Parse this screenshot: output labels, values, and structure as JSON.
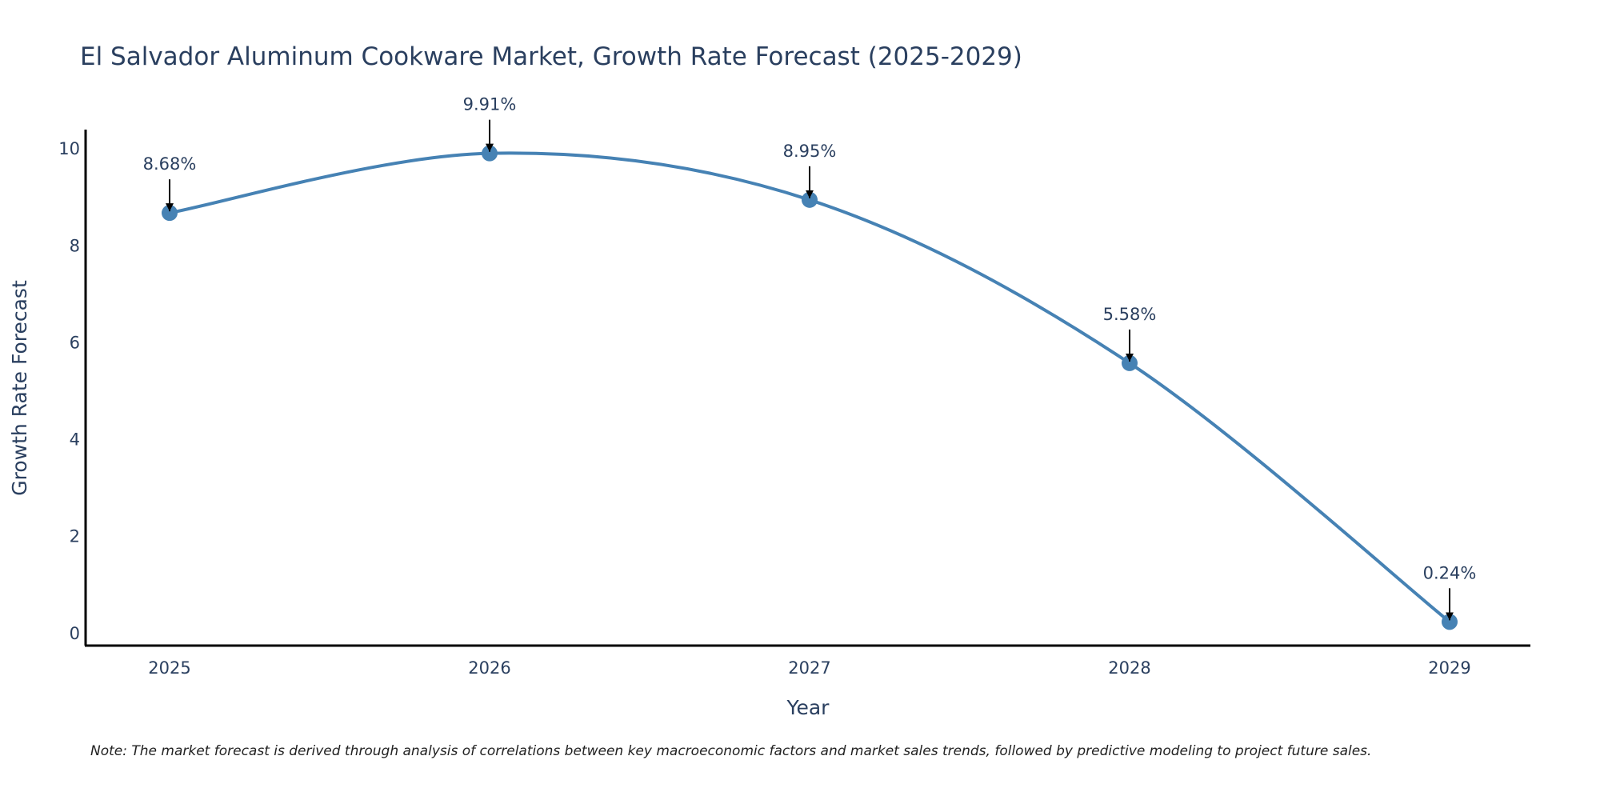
{
  "chart_data": {
    "type": "line",
    "title": "El Salvador Aluminum Cookware Market, Growth Rate Forecast (2025-2029)",
    "xlabel": "Year",
    "ylabel": "Growth Rate Forecast",
    "categories": [
      "2025",
      "2026",
      "2027",
      "2028",
      "2029"
    ],
    "series": [
      {
        "name": "Growth Rate Forecast",
        "values": [
          8.68,
          9.91,
          8.95,
          5.58,
          0.24
        ],
        "labels": [
          "8.68%",
          "9.91%",
          "8.95%",
          "5.58%",
          "0.24%"
        ]
      }
    ],
    "yticks": [
      "0",
      "2",
      "4",
      "6",
      "8",
      "10"
    ],
    "ytick_values": [
      0,
      2,
      4,
      6,
      8,
      10
    ],
    "ylim": [
      -0.25,
      10.4
    ],
    "grid": false,
    "line_color": "#4682b4",
    "arrow_color": "#000000",
    "note": "Note: The market forecast is derived through analysis of correlations between key macroeconomic factors and market sales trends, followed by predictive modeling to project future sales."
  }
}
